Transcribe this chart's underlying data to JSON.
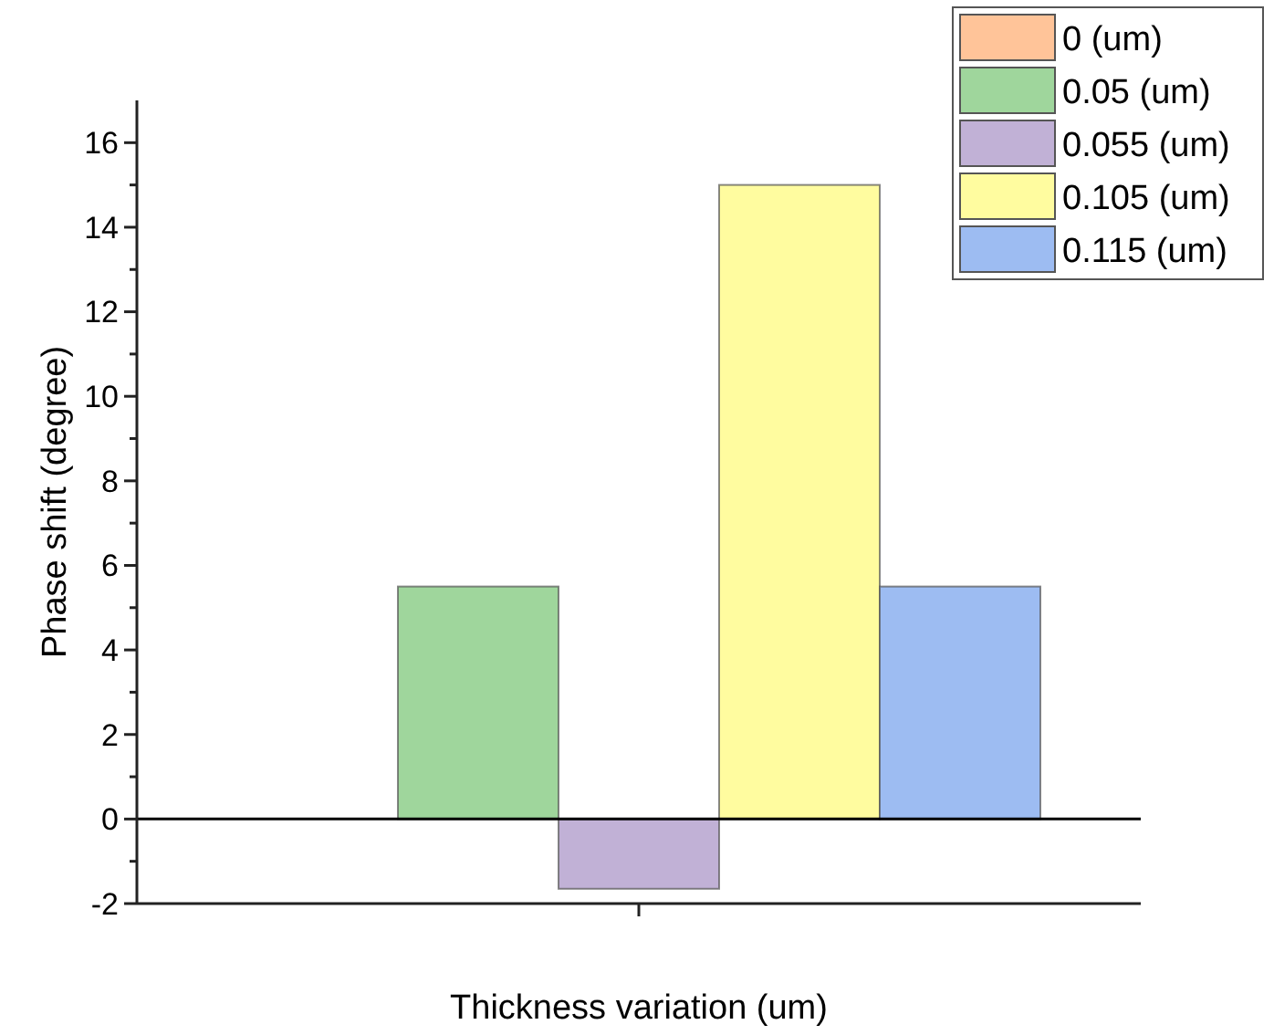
{
  "chart_data": {
    "type": "bar",
    "xlabel": "Thickness variation (um)",
    "ylabel": "Phase shift (degree)",
    "categories": [
      null
    ],
    "series": [
      {
        "name": "0 (um)",
        "color": "#ffc499",
        "values": [
          0
        ]
      },
      {
        "name": "0.05 (um)",
        "color": "#9fd69c",
        "values": [
          5.5
        ]
      },
      {
        "name": "0.055 (um)",
        "color": "#c1b1d6",
        "values": [
          -1.65
        ]
      },
      {
        "name": "0.105 (um)",
        "color": "#fffc9f",
        "values": [
          15
        ]
      },
      {
        "name": "0.115 (um)",
        "color": "#9dbcf2",
        "values": [
          5.5
        ]
      }
    ],
    "ylim": [
      -2,
      17
    ],
    "yticks": [
      -2,
      {
        "value": -1,
        "label": null
      },
      0,
      {
        "value": 1,
        "label": null
      },
      2,
      {
        "value": 3,
        "label": null
      },
      4,
      {
        "value": 5,
        "label": null
      },
      6,
      {
        "value": 7,
        "label": null
      },
      8,
      {
        "value": 9,
        "label": null
      },
      10,
      {
        "value": 11,
        "label": null
      },
      12,
      {
        "value": 13,
        "label": null
      },
      14,
      {
        "value": 15,
        "label": null
      },
      16
    ],
    "ref_lines": [
      {
        "axis": "y",
        "value": 0,
        "color": "#000000"
      }
    ],
    "legend": "top right",
    "grid": false
  }
}
